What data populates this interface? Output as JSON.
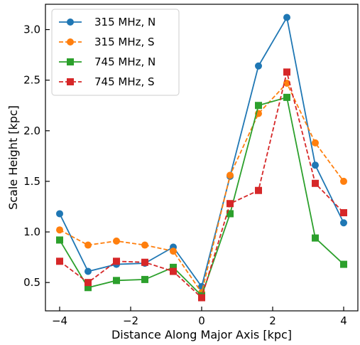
{
  "chart_data": {
    "type": "line",
    "xlabel": "Distance Along Major Axis [kpc]",
    "ylabel": "Scale Height [kpc]",
    "xlim": [
      -4.4,
      4.4
    ],
    "ylim": [
      0.22,
      3.25
    ],
    "xticks": [
      -4,
      -2,
      0,
      2,
      4
    ],
    "xtick_labels": [
      "−4",
      "−2",
      "0",
      "2",
      "4"
    ],
    "yticks": [
      0.5,
      1.0,
      1.5,
      2.0,
      2.5,
      3.0
    ],
    "ytick_labels": [
      "0.5",
      "1.0",
      "1.5",
      "2.0",
      "2.5",
      "3.0"
    ],
    "legend_position": "top-left",
    "x": [
      -4.0,
      -3.2,
      -2.4,
      -1.6,
      -0.8,
      0.0,
      0.8,
      1.6,
      2.4,
      3.2,
      4.0
    ],
    "series": [
      {
        "name": "315 MHz, N",
        "color": "#1f77b4",
        "marker": "circle",
        "linestyle": "solid",
        "values": [
          1.18,
          0.61,
          0.68,
          0.69,
          0.85,
          0.46,
          1.55,
          2.64,
          3.12,
          1.66,
          1.09
        ]
      },
      {
        "name": "315 MHz, S",
        "color": "#ff7f0e",
        "marker": "circle",
        "linestyle": "dashed",
        "values": [
          1.02,
          0.87,
          0.91,
          0.87,
          0.81,
          0.4,
          1.56,
          2.17,
          2.47,
          1.88,
          1.5
        ]
      },
      {
        "name": "745 MHz, N",
        "color": "#2ca02c",
        "marker": "square",
        "linestyle": "solid",
        "values": [
          0.92,
          0.45,
          0.52,
          0.53,
          0.65,
          0.37,
          1.18,
          2.25,
          2.33,
          0.94,
          0.68
        ]
      },
      {
        "name": "745 MHz, S",
        "color": "#d62728",
        "marker": "square",
        "linestyle": "dashed",
        "values": [
          0.71,
          0.5,
          0.71,
          0.7,
          0.61,
          0.35,
          1.28,
          1.41,
          2.58,
          1.48,
          1.19
        ]
      }
    ]
  }
}
